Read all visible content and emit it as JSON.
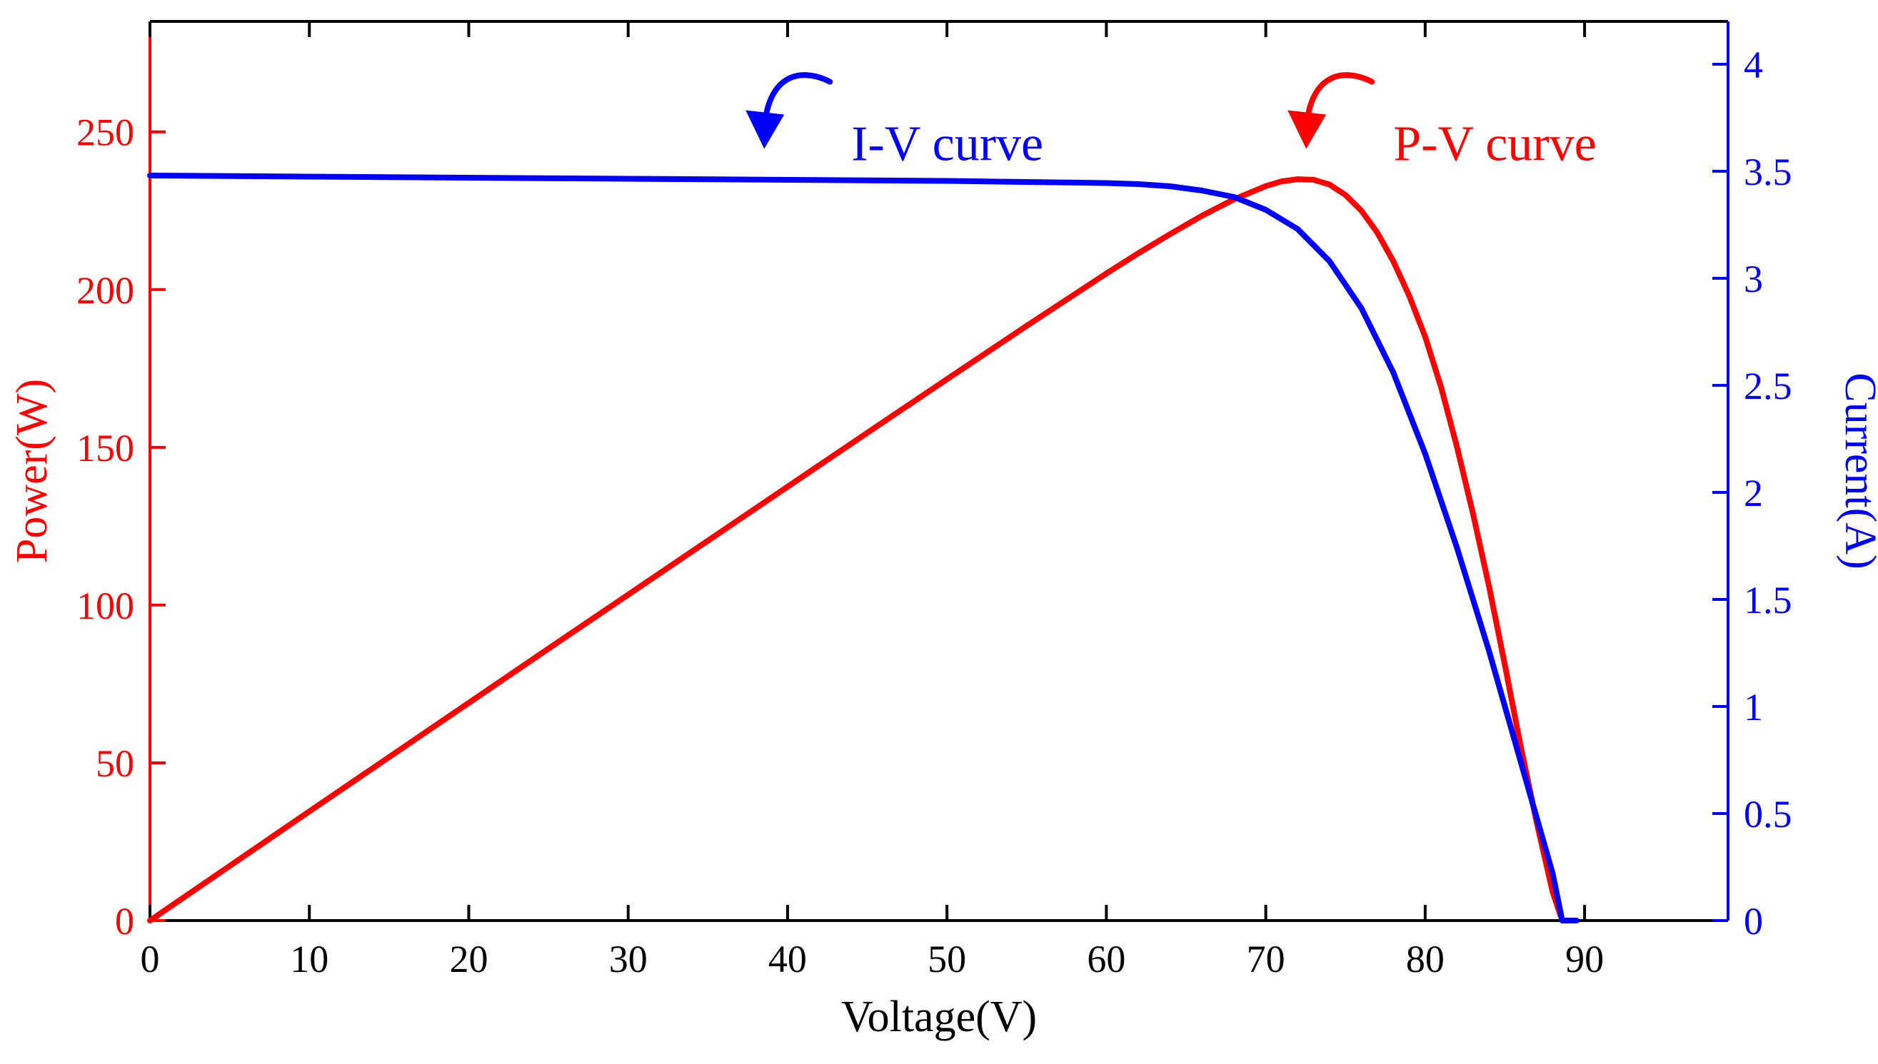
{
  "chart_data": {
    "type": "line",
    "title": "",
    "xlabel": "Voltage(V)",
    "ylabel_left": "Power(W)",
    "ylabel_right": "Current(A)",
    "xlim": [
      0,
      99
    ],
    "ylim_left": [
      0,
      285
    ],
    "ylim_right": [
      0,
      4.2
    ],
    "x_ticks": [
      0,
      10,
      20,
      30,
      40,
      50,
      60,
      70,
      80,
      90
    ],
    "y_ticks_left": [
      0,
      50,
      100,
      150,
      200,
      250
    ],
    "y_ticks_right": [
      0,
      0.5,
      1,
      1.5,
      2,
      2.5,
      3,
      3.5,
      4
    ],
    "grid": false,
    "colors": {
      "power": "#ff0000",
      "current": "#0000ff",
      "axis": "#000000"
    },
    "series": [
      {
        "name": "P-V curve",
        "axis": "left",
        "color": "#ff0000",
        "x": [
          0,
          5,
          10,
          15,
          20,
          25,
          30,
          35,
          40,
          45,
          50,
          55,
          60,
          62,
          64,
          66,
          68,
          70,
          71,
          72,
          73,
          74,
          75,
          76,
          77,
          78,
          79,
          80,
          81,
          82,
          83,
          84,
          85,
          86,
          87,
          88,
          88.6
        ],
        "values": [
          0,
          17.3,
          34.6,
          51.8,
          69.0,
          86.2,
          103.3,
          120.4,
          137.5,
          154.6,
          171.6,
          188.5,
          205.1,
          211.5,
          217.6,
          223.4,
          228.6,
          232.8,
          234.3,
          235.0,
          234.8,
          233.3,
          230.0,
          225.0,
          218.0,
          209.0,
          198.0,
          185.0,
          169.0,
          150.0,
          129.0,
          106.0,
          81.0,
          55.0,
          31.0,
          9.0,
          0
        ]
      },
      {
        "name": "I-V curve",
        "axis": "right",
        "color": "#0000ff",
        "x": [
          0,
          10,
          20,
          30,
          40,
          50,
          55,
          60,
          62,
          64,
          66,
          68,
          70,
          72,
          74,
          76,
          78,
          80,
          82,
          84,
          85,
          86,
          87,
          88,
          88.6,
          89.5
        ],
        "values": [
          3.48,
          3.475,
          3.47,
          3.465,
          3.46,
          3.455,
          3.45,
          3.445,
          3.44,
          3.43,
          3.41,
          3.38,
          3.32,
          3.23,
          3.08,
          2.86,
          2.56,
          2.18,
          1.74,
          1.26,
          1.0,
          0.74,
          0.48,
          0.22,
          0,
          0
        ]
      }
    ],
    "annotations": [
      {
        "text": "I-V curve",
        "color": "#0000ff",
        "anchor_x": 44,
        "anchor_y_left": 241
      },
      {
        "text": "P-V curve",
        "color": "#ff0000",
        "anchor_x": 78,
        "anchor_y_left": 241
      }
    ]
  }
}
